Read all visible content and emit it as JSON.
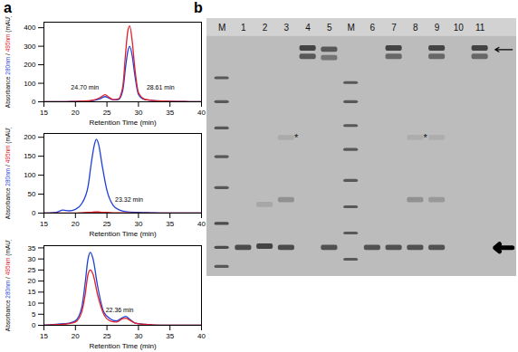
{
  "panel_labels": [
    "a",
    "b"
  ],
  "chart_data": [
    {
      "type": "line",
      "x_label": "Retention Time (min)",
      "y_label": "Absorbance 280nm / 495nm (mAU)",
      "xlim": [
        15,
        40
      ],
      "xticks": [
        15,
        20,
        25,
        30,
        35,
        40
      ],
      "ylim": [
        0,
        430
      ],
      "yticks": [
        0,
        100,
        200,
        300,
        400
      ],
      "x": [
        15,
        18,
        20,
        22,
        23,
        24,
        24.7,
        25.3,
        26,
        26.8,
        27.5,
        28,
        28.3,
        28.61,
        29,
        29.4,
        30,
        31,
        32,
        34,
        36,
        38,
        40
      ],
      "series": [
        {
          "name": "280nm",
          "color": "#1f3fd6",
          "values": [
            0,
            0,
            2,
            4,
            8,
            18,
            28,
            20,
            10,
            12,
            60,
            200,
            270,
            300,
            250,
            150,
            40,
            12,
            8,
            4,
            2,
            1,
            0
          ]
        },
        {
          "name": "495nm",
          "color": "#e0202a",
          "values": [
            0,
            0,
            2,
            5,
            10,
            25,
            38,
            25,
            12,
            15,
            80,
            280,
            380,
            410,
            330,
            190,
            50,
            14,
            8,
            4,
            2,
            1,
            0
          ]
        }
      ],
      "annotations": [
        {
          "text": "24.70 min",
          "x": 21.5,
          "y": 75
        },
        {
          "text": "28.61 min",
          "x": 33.5,
          "y": 75
        }
      ]
    },
    {
      "type": "line",
      "x_label": "Retention Time (min)",
      "y_label": "Absorbance 280nm / 495nm (mAU)",
      "xlim": [
        15,
        40
      ],
      "xticks": [
        15,
        20,
        25,
        30,
        35,
        40
      ],
      "ylim": [
        0,
        210
      ],
      "yticks": [
        0,
        50,
        100,
        150,
        200
      ],
      "x": [
        15,
        17,
        18,
        19,
        20,
        21,
        22,
        22.5,
        23,
        23.32,
        23.7,
        24.2,
        25,
        26,
        27,
        28,
        30,
        32,
        35,
        40
      ],
      "series": [
        {
          "name": "280nm",
          "color": "#1f3fd6",
          "values": [
            0,
            2,
            8,
            6,
            10,
            25,
            70,
            130,
            180,
            195,
            180,
            130,
            60,
            20,
            8,
            4,
            2,
            1,
            0,
            0
          ]
        },
        {
          "name": "495nm",
          "color": "#e0202a",
          "values": [
            0,
            0,
            0,
            0,
            0,
            1,
            2,
            2,
            3,
            3,
            3,
            2,
            2,
            1,
            1,
            1,
            0,
            0,
            0,
            0
          ]
        }
      ],
      "annotations": [
        {
          "text": "23.32 min",
          "x": 28.5,
          "y": 35
        }
      ]
    },
    {
      "type": "line",
      "x_label": "Retention Time (min)",
      "y_label": "Absorbance 280nm / 495nm (mAU)",
      "xlim": [
        15,
        40
      ],
      "xticks": [
        15,
        20,
        25,
        30,
        35,
        40
      ],
      "ylim": [
        0,
        36
      ],
      "yticks": [
        0,
        5,
        10,
        15,
        20,
        25,
        30,
        35
      ],
      "x": [
        15,
        17,
        19,
        20,
        21,
        21.5,
        22,
        22.36,
        22.8,
        23.5,
        24.5,
        25.5,
        26.5,
        27.5,
        28,
        28.5,
        29.5,
        31,
        34,
        40
      ],
      "series": [
        {
          "name": "280nm",
          "color": "#1f3fd6",
          "values": [
            0,
            0.5,
            1,
            2,
            8,
            18,
            30,
            33,
            30,
            18,
            6,
            3,
            2,
            3.5,
            4,
            3,
            1,
            0.5,
            0,
            0
          ]
        },
        {
          "name": "495nm",
          "color": "#e0202a",
          "values": [
            0,
            0.3,
            0.8,
            1.5,
            6,
            13,
            23,
            25,
            23,
            14,
            5,
            2,
            1.5,
            3,
            3.2,
            2.5,
            1,
            0.4,
            0,
            0
          ]
        }
      ],
      "annotations": [
        {
          "text": "22.36 min",
          "x": 27,
          "y": 7
        }
      ]
    }
  ],
  "gel": {
    "lanes": [
      {
        "label": "M",
        "marker": true,
        "bands": [
          {
            "migration": 0.17,
            "intensity": 0.7
          },
          {
            "migration": 0.27,
            "intensity": 0.7
          },
          {
            "migration": 0.38,
            "intensity": 0.7
          },
          {
            "migration": 0.5,
            "intensity": 0.7
          },
          {
            "migration": 0.63,
            "intensity": 0.7
          },
          {
            "migration": 0.78,
            "intensity": 0.8
          },
          {
            "migration": 0.88,
            "intensity": 0.8
          },
          {
            "migration": 0.96,
            "intensity": 0.7
          }
        ]
      },
      {
        "label": "1",
        "marker": false,
        "bands": [
          {
            "migration": 0.88,
            "intensity": 0.8
          }
        ]
      },
      {
        "label": "2",
        "marker": false,
        "bands": [
          {
            "migration": 0.7,
            "intensity": 0.15
          },
          {
            "migration": 0.875,
            "intensity": 0.85
          }
        ]
      },
      {
        "label": "3",
        "marker": false,
        "bands": [
          {
            "migration": 0.42,
            "intensity": 0.12
          },
          {
            "migration": 0.68,
            "intensity": 0.3
          },
          {
            "migration": 0.88,
            "intensity": 0.8
          }
        ]
      },
      {
        "label": "4",
        "marker": false,
        "bands": [
          {
            "migration": 0.045,
            "intensity": 0.85
          },
          {
            "migration": 0.08,
            "intensity": 0.7
          }
        ]
      },
      {
        "label": "5",
        "marker": false,
        "bands": [
          {
            "migration": 0.05,
            "intensity": 0.7
          },
          {
            "migration": 0.085,
            "intensity": 0.5
          },
          {
            "migration": 0.88,
            "intensity": 0.75
          }
        ]
      },
      {
        "label": "M",
        "marker": true,
        "bands": [
          {
            "migration": 0.19,
            "intensity": 0.7
          },
          {
            "migration": 0.27,
            "intensity": 0.7
          },
          {
            "migration": 0.37,
            "intensity": 0.7
          },
          {
            "migration": 0.47,
            "intensity": 0.7
          },
          {
            "migration": 0.6,
            "intensity": 0.7
          },
          {
            "migration": 0.71,
            "intensity": 0.7
          },
          {
            "migration": 0.82,
            "intensity": 0.7
          },
          {
            "migration": 0.93,
            "intensity": 0.7
          }
        ]
      },
      {
        "label": "6",
        "marker": false,
        "bands": [
          {
            "migration": 0.88,
            "intensity": 0.75
          }
        ]
      },
      {
        "label": "7",
        "marker": false,
        "bands": [
          {
            "migration": 0.045,
            "intensity": 0.85
          },
          {
            "migration": 0.08,
            "intensity": 0.6
          },
          {
            "migration": 0.88,
            "intensity": 0.75
          }
        ]
      },
      {
        "label": "8",
        "marker": false,
        "bands": [
          {
            "migration": 0.42,
            "intensity": 0.1
          },
          {
            "migration": 0.68,
            "intensity": 0.3
          },
          {
            "migration": 0.88,
            "intensity": 0.75
          }
        ]
      },
      {
        "label": "9",
        "marker": false,
        "bands": [
          {
            "migration": 0.045,
            "intensity": 0.85
          },
          {
            "migration": 0.08,
            "intensity": 0.6
          },
          {
            "migration": 0.42,
            "intensity": 0.1
          },
          {
            "migration": 0.68,
            "intensity": 0.25
          },
          {
            "migration": 0.88,
            "intensity": 0.75
          }
        ]
      },
      {
        "label": "10",
        "marker": false,
        "bands": []
      },
      {
        "label": "11",
        "marker": false,
        "bands": [
          {
            "migration": 0.045,
            "intensity": 0.85
          },
          {
            "migration": 0.08,
            "intensity": 0.6
          }
        ]
      }
    ],
    "asterisks": [
      {
        "lane": 3,
        "migration": 0.42,
        "text": "*"
      },
      {
        "lane": 9,
        "migration": 0.42,
        "text": "*"
      }
    ],
    "pointers": [
      {
        "migration": 0.05,
        "style": "thin"
      },
      {
        "migration": 0.88,
        "style": "thick"
      }
    ]
  }
}
